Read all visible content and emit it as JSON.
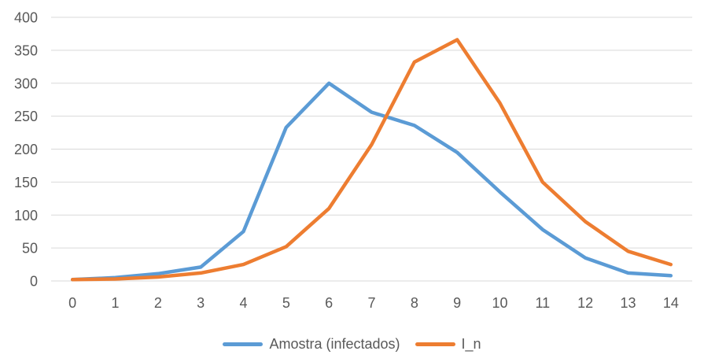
{
  "chart_data": {
    "type": "line",
    "title": "",
    "x_categories": [
      0,
      1,
      2,
      3,
      4,
      5,
      6,
      7,
      8,
      9,
      10,
      11,
      12,
      13,
      14
    ],
    "series": [
      {
        "name": "Amostra (infectados)",
        "color": "#5B9BD5",
        "values": [
          2,
          5,
          11,
          21,
          75,
          233,
          300,
          256,
          236,
          195,
          135,
          78,
          35,
          12,
          8
        ]
      },
      {
        "name": "I_n",
        "color": "#ED7D31",
        "values": [
          2,
          3,
          6,
          12,
          25,
          52,
          110,
          207,
          332,
          366,
          270,
          150,
          90,
          45,
          25
        ]
      }
    ],
    "ylim": [
      0,
      400
    ],
    "yticks": [
      0,
      50,
      100,
      150,
      200,
      250,
      300,
      350,
      400
    ],
    "xlim_categories": [
      0,
      14
    ],
    "grid": "horizontal",
    "gridline_color": "#D9D9D9",
    "axis_label_color": "#595959",
    "background_color": "#FFFFFF",
    "legend_position": "bottom",
    "line_width": 4.5
  }
}
